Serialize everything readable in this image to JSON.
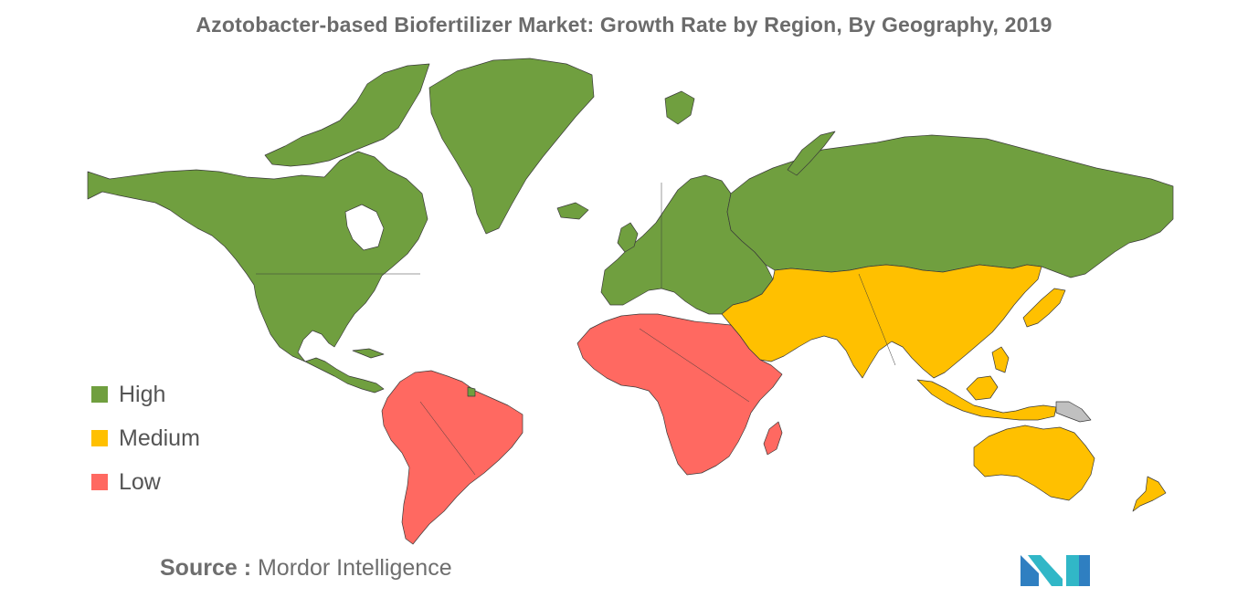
{
  "title": "Azotobacter-based Biofertilizer Market: Growth Rate by Region, By Geography, 2019",
  "colors": {
    "high": "#709f3f",
    "medium": "#ffc000",
    "low": "#ff6961",
    "no_data": "#c0c0c0",
    "border": "#3a3a3a"
  },
  "legend": [
    {
      "key": "high",
      "label": "High"
    },
    {
      "key": "medium",
      "label": "Medium"
    },
    {
      "key": "low",
      "label": "Low"
    }
  ],
  "regions": {
    "north_america": "high",
    "greenland": "high",
    "europe": "high",
    "russia": "high",
    "south_america": "low",
    "africa": "low",
    "middle_east_asia": "medium",
    "southeast_asia": "medium",
    "japan": "medium",
    "oceania": "medium",
    "papua_new_guinea": "no_data"
  },
  "source": {
    "prefix": "Source :",
    "name": "Mordor Intelligence"
  },
  "logo": {
    "name": "mordor-intelligence-logo",
    "colors": [
      "#2f7fc1",
      "#31b7c7"
    ]
  }
}
